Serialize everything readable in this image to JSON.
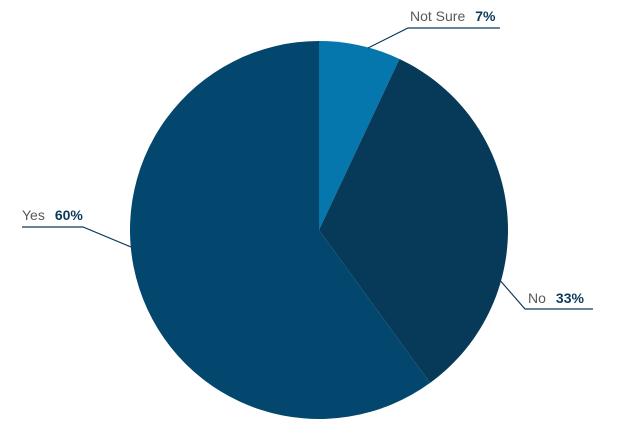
{
  "chart_data": {
    "type": "pie",
    "slices": [
      {
        "name": "Not Sure",
        "value": 7,
        "label": "7%",
        "color": "#0677ad"
      },
      {
        "name": "No",
        "value": 33,
        "label": "33%",
        "color": "#063a58"
      },
      {
        "name": "Yes",
        "value": 60,
        "label": "60%",
        "color": "#03476e"
      }
    ],
    "start": "12 o'clock",
    "direction": "clockwise",
    "legend": "none",
    "title": ""
  }
}
